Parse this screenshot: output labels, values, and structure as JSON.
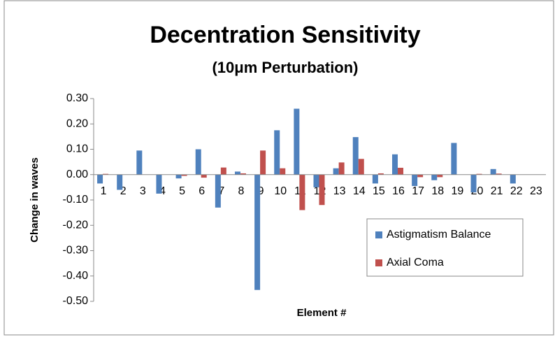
{
  "chart_data": {
    "type": "bar",
    "title": "Decentration Sensitivity",
    "subtitle": "(10μm Perturbation)",
    "x_label": "Element #",
    "y_label": "Change in waves",
    "categories": [
      "1",
      "2",
      "3",
      "4",
      "5",
      "6",
      "7",
      "8",
      "9",
      "10",
      "11",
      "12",
      "13",
      "14",
      "15",
      "16",
      "17",
      "18",
      "19",
      "20",
      "21",
      "22",
      "23"
    ],
    "series": [
      {
        "name": "Astigmatism Balance",
        "color": "#4f81bd",
        "values": [
          -0.035,
          -0.06,
          0.095,
          -0.075,
          -0.015,
          0.1,
          -0.13,
          0.012,
          -0.455,
          0.175,
          0.26,
          -0.05,
          0.025,
          0.148,
          -0.035,
          0.08,
          -0.045,
          -0.022,
          0.125,
          -0.07,
          0.022,
          -0.035,
          0
        ]
      },
      {
        "name": "Axial Coma",
        "color": "#c0504d",
        "values": [
          0.003,
          0,
          0,
          0,
          -0.005,
          -0.012,
          0.028,
          0.005,
          0.095,
          0.025,
          -0.14,
          -0.12,
          0.048,
          0.062,
          0.005,
          0.027,
          -0.01,
          -0.01,
          0,
          0.003,
          0.004,
          0,
          0
        ]
      }
    ],
    "ylim": [
      -0.5,
      0.3
    ],
    "yticks": [
      {
        "value": 0.3,
        "label": "0.30"
      },
      {
        "value": 0.2,
        "label": "0.20"
      },
      {
        "value": 0.1,
        "label": "0.10"
      },
      {
        "value": 0,
        "label": "0.00"
      },
      {
        "value": -0.1,
        "label": "-0.10"
      },
      {
        "value": -0.2,
        "label": "-0.20"
      },
      {
        "value": -0.3,
        "label": "-0.30"
      },
      {
        "value": -0.4,
        "label": "-0.40"
      },
      {
        "value": -0.5,
        "label": "-0.50"
      }
    ],
    "grid": false
  }
}
